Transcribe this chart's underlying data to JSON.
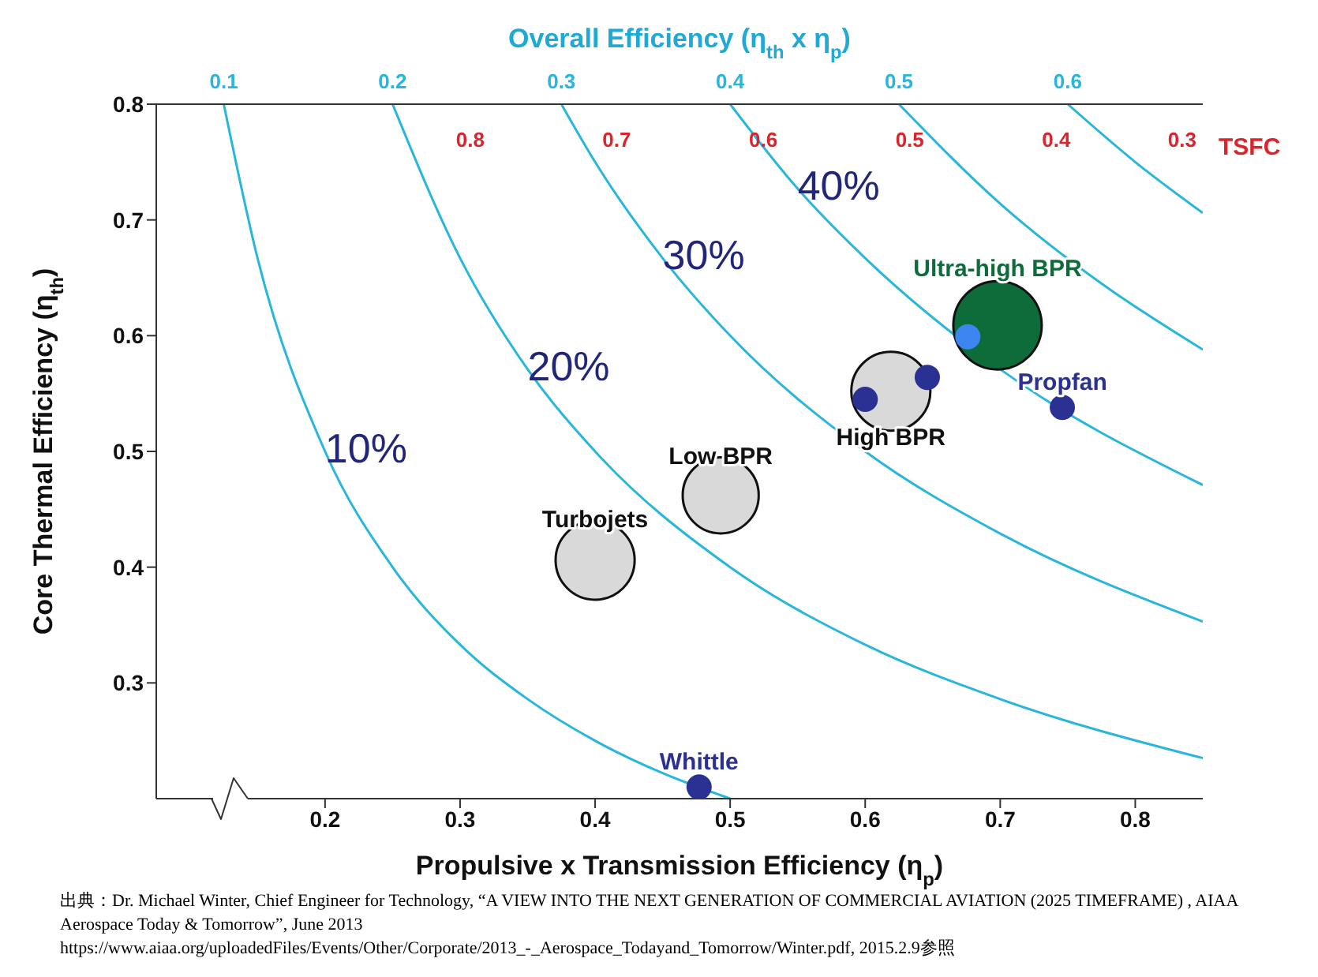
{
  "chart_data": {
    "type": "scatter",
    "title": "Overall Efficiency (η$_{th}$ x η$_{p}$)",
    "xlabel": "Propulsive x Transmission Efficiency (η$_{p}$)",
    "ylabel": "Core Thermal Efficiency (η$_{th}$)",
    "x2label": "TSFC",
    "xlim": [
      0.075,
      0.85
    ],
    "xticks": [
      0.2,
      0.3,
      0.4,
      0.5,
      0.6,
      0.7,
      0.8
    ],
    "ylim": [
      0.2,
      0.8
    ],
    "yticks": [
      0.3,
      0.4,
      0.5,
      0.6,
      0.7,
      0.8
    ],
    "marker": "circle",
    "series": [
      {
        "type": "line",
        "name": "0.1",
        "marker": "none",
        "color": "#29b6dc",
        "x": [
          0.125,
          0.15,
          0.2,
          0.25,
          0.3,
          0.35,
          0.4,
          0.45,
          0.5
        ],
        "values": [
          0.8,
          0.667,
          0.5,
          0.4,
          0.333,
          0.286,
          0.25,
          0.222,
          0.2
        ]
      },
      {
        "type": "line",
        "name": "0.2",
        "marker": "none",
        "color": "#29b6dc",
        "x": [
          0.25,
          0.3,
          0.35,
          0.4,
          0.5,
          0.6,
          0.7,
          0.85
        ],
        "values": [
          0.8,
          0.667,
          0.571,
          0.5,
          0.4,
          0.333,
          0.286,
          0.235
        ]
      },
      {
        "type": "line",
        "name": "0.3",
        "marker": "none",
        "color": "#29b6dc",
        "x": [
          0.375,
          0.4,
          0.45,
          0.5,
          0.6,
          0.7,
          0.85
        ],
        "values": [
          0.8,
          0.75,
          0.667,
          0.6,
          0.5,
          0.429,
          0.353
        ]
      },
      {
        "type": "line",
        "name": "0.4",
        "marker": "none",
        "color": "#29b6dc",
        "x": [
          0.5,
          0.55,
          0.6,
          0.7,
          0.85
        ],
        "values": [
          0.8,
          0.727,
          0.667,
          0.571,
          0.471
        ]
      },
      {
        "type": "line",
        "name": "0.5",
        "marker": "none",
        "color": "#29b6dc",
        "x": [
          0.625,
          0.7,
          0.775,
          0.85
        ],
        "values": [
          0.8,
          0.714,
          0.645,
          0.588
        ]
      },
      {
        "type": "line",
        "name": "0.6",
        "marker": "none",
        "color": "#29b6dc",
        "x": [
          0.75,
          0.8,
          0.85
        ],
        "values": [
          0.8,
          0.75,
          0.706
        ]
      },
      {
        "type": "bubble",
        "name": "Turbojets",
        "color": "#d9d9d9",
        "x": [
          0.4
        ],
        "values": [
          0.406
        ],
        "sizes": [
          0.8
        ]
      },
      {
        "type": "bubble",
        "name": "Low BPR",
        "color": "#d9d9d9",
        "x": [
          0.493
        ],
        "values": [
          0.462
        ],
        "sizes": [
          0.74
        ]
      },
      {
        "type": "bubble",
        "name": "High BPR",
        "color": "#d9d9d9",
        "x": [
          0.619
        ],
        "values": [
          0.552
        ],
        "sizes": [
          0.8
        ]
      },
      {
        "type": "bubble",
        "name": "Ultra-high BPR",
        "color": "#0e6b3a",
        "x": [
          0.698
        ],
        "values": [
          0.609
        ],
        "sizes": [
          1
        ]
      },
      {
        "x": [
          0.6,
          0.646,
          0.676
        ],
        "values": [
          0.545,
          0.564,
          0.599
        ],
        "colors": [
          "#2b3192",
          "#2b3192",
          "#3d85f0"
        ]
      },
      {
        "name": "Propfan",
        "color": "#2b3192",
        "x": [
          0.746
        ],
        "values": [
          0.538
        ]
      },
      {
        "name": "Whittle",
        "color": "#2b3192",
        "x": [
          0.477
        ],
        "values": [
          0.21
        ]
      }
    ],
    "annotations": [
      {
        "text": "10%",
        "x": 0.2,
        "y": 0.5
      },
      {
        "text": "20%",
        "x": 0.35,
        "y": 0.571
      },
      {
        "text": "30%",
        "x": 0.45,
        "y": 0.667
      },
      {
        "text": "40%",
        "x": 0.55,
        "y": 0.727
      },
      "0.8",
      "0.7",
      "0.6",
      "0.5",
      "0.4",
      "0.3",
      "出典：Dr. Michael Winter, Chief Engineer for Technology, “A VIEW INTO THE NEXT GENERATION OF COMMERCIAL AVIATION (2025 TIMEFRAME) , AIAA Aerospace Today & Tomorrow”, June 2013",
      "https://www.aiaa.org/uploadedFiles/Events/Other/Corporate/2013_-_Aerospace_Todayand_Tomorrow/Winter.pdf, 2015.2.9参照"
    ]
  }
}
